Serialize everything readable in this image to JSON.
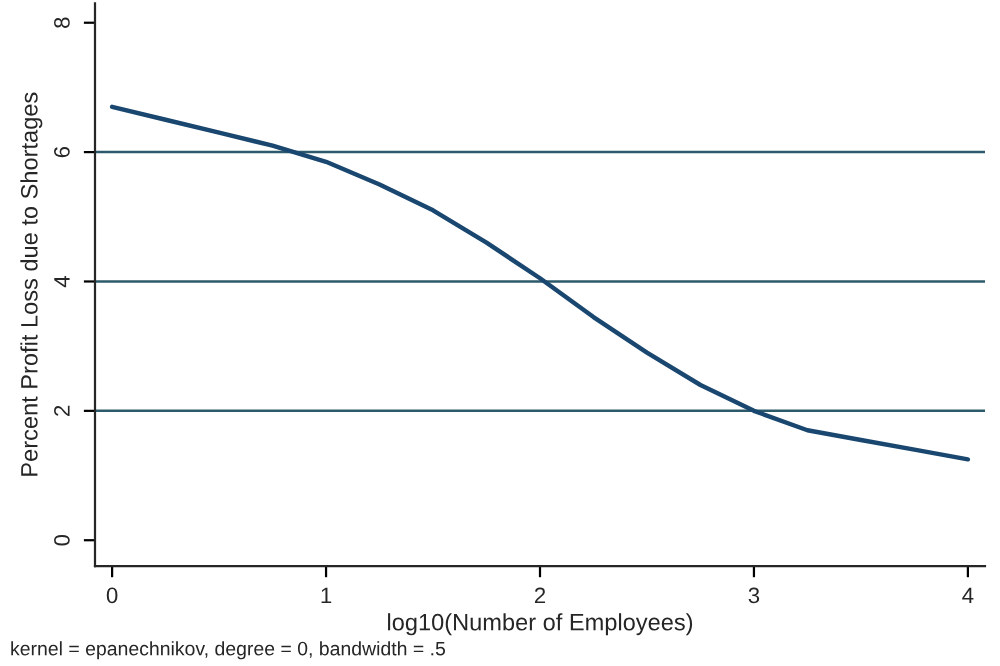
{
  "chart_data": {
    "type": "line",
    "xlabel": "log10(Number of Employees)",
    "ylabel": "Percent Profit Loss due to Shortages",
    "annotations": [
      "kernel = epanechnikov, degree = 0, bandwidth = .5"
    ],
    "series": [
      {
        "color": "#1a476f",
        "x": [
          0,
          0.25,
          0.5,
          0.75,
          1,
          1.25,
          1.5,
          1.75,
          2,
          2.25,
          2.5,
          2.75,
          3,
          3.25,
          3.5,
          3.75,
          4
        ],
        "values": [
          6.7,
          6.5,
          6.3,
          6.1,
          5.85,
          5.5,
          5.1,
          4.6,
          4.05,
          3.45,
          2.9,
          2.4,
          2.0,
          1.7,
          1.55,
          1.4,
          1.25
        ]
      }
    ],
    "xlim": [
      -0.08,
      4.08
    ],
    "ylim": [
      -0.4,
      8.3
    ],
    "xticks": [
      0,
      1,
      2,
      3,
      4
    ],
    "yticks": [
      0,
      2,
      4,
      6,
      8
    ],
    "grid": "y",
    "marker": "none",
    "line_style": "solid",
    "legend": false
  }
}
